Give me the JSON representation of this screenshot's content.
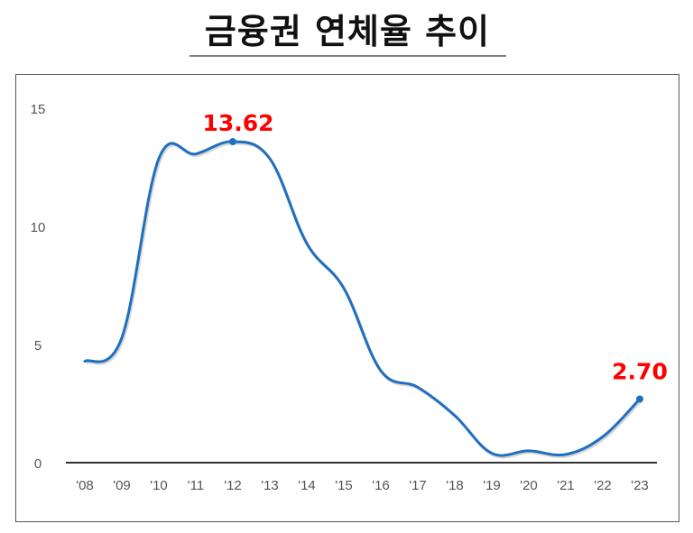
{
  "title": "금융권 연체율 추이",
  "colors": {
    "line": "#1f6fbf",
    "callout": "#ff0000",
    "axis": "#333333",
    "tick_text": "#555555",
    "frame": "#555555"
  },
  "annotations": {
    "peak_label": "13.62",
    "last_label": "2.70"
  },
  "chart_data": {
    "type": "line",
    "title": "금융권 연체율 추이",
    "xlabel": "",
    "ylabel": "",
    "categories": [
      "'08",
      "'09",
      "'10",
      "'11",
      "'12",
      "'13",
      "'14",
      "'15",
      "'16",
      "'17",
      "'18",
      "'19",
      "'20",
      "'21",
      "'22",
      "'23"
    ],
    "series": [
      {
        "name": "연체율",
        "values": [
          4.3,
          5.3,
          12.9,
          13.1,
          13.62,
          12.9,
          9.3,
          7.4,
          3.9,
          3.2,
          2.0,
          0.4,
          0.5,
          0.35,
          1.1,
          2.7
        ]
      }
    ],
    "y_ticks": [
      "0",
      "5",
      "10",
      "15"
    ],
    "ylim": [
      0,
      15
    ],
    "grid": false,
    "legend": "none",
    "annotations": [
      {
        "category": "'12",
        "value": 13.62,
        "label": "13.62"
      },
      {
        "category": "'23",
        "value": 2.7,
        "label": "2.70"
      }
    ],
    "smooth": true
  }
}
